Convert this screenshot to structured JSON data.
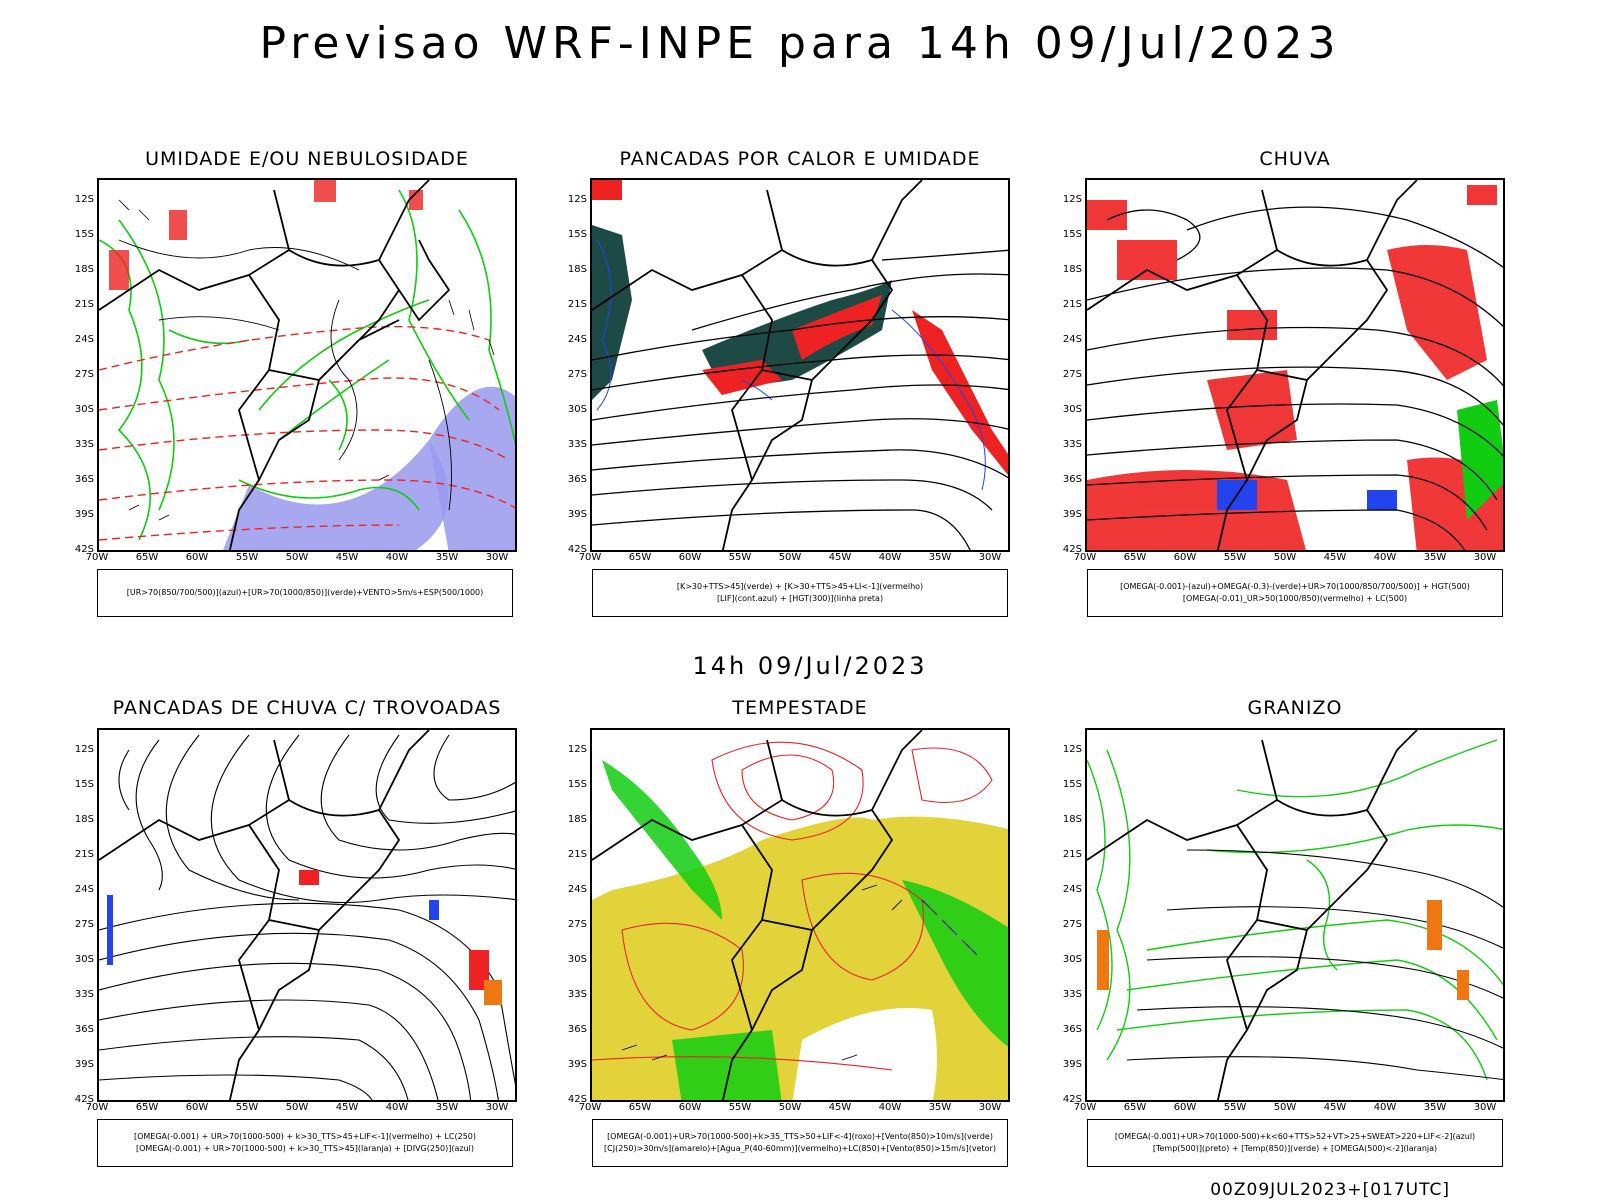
{
  "title": "Previsao WRF-INPE  para 14h 09/Jul/2023",
  "mid_label": "14h 09/Jul/2023",
  "run_id": "00Z09JUL2023+[017UTC]",
  "axes": {
    "lat_labels": [
      "12S",
      "15S",
      "18S",
      "21S",
      "24S",
      "27S",
      "30S",
      "33S",
      "36S",
      "39S",
      "42S"
    ],
    "lon_labels": [
      "70W",
      "65W",
      "60W",
      "55W",
      "50W",
      "45W",
      "40W",
      "35W",
      "30W"
    ]
  },
  "panels": [
    {
      "title": "UMIDADE E/OU NEBULOSIDADE",
      "legend_line1": "[UR>70(850/700/500)](azul)+[UR>70(1000/850)](verde)+VENTO>5m/s+ESP(500/1000)",
      "legend_line2": ""
    },
    {
      "title": "PANCADAS POR CALOR E UMIDADE",
      "legend_line1": "[K>30+TTS>45](verde) + [K>30+TTS>45+LI<-1](vermelho)",
      "legend_line2": "[LIF](cont.azul) + [HGT(300)](linha preta)"
    },
    {
      "title": "CHUVA",
      "legend_line1": "[OMEGA(-0.001)-(azul)+OMEGA(-0.3)-(verde)+UR>70(1000/850/700/500)] + HGT(500)",
      "legend_line2": "[OMEGA(-0.01)_UR>50(1000/850)(vermelho) + LC(500)"
    },
    {
      "title": "PANCADAS DE CHUVA C/ TROVOADAS",
      "legend_line1": "[OMEGA(-0.001) + UR>70(1000-500) + k>30_TTS>45+LIF<-1](vermelho) + LC(250)",
      "legend_line2": "[OMEGA(-0.001) + UR>70(1000-500) + k>30_TTS>45](laranja) + [DIVG(250)](azul)"
    },
    {
      "title": "TEMPESTADE",
      "legend_line1": "[OMEGA(-0.001)+UR>70(1000-500)+k>35_TTS>50+LIF<-4](roxo)+[Vento(850)>10m/s](verde)",
      "legend_line2": "[CJ(250)>30m/s](amarelo)+[Agua_P(40-60mm)](vermelho)+LC(850)+[Vento(850)>15m/s](vetor)"
    },
    {
      "title": "GRANIZO",
      "legend_line1": "[OMEGA(-0.001)+UR>70(1000-500)+k<60+TTS>52+VT>25+SWEAT>220+LIF<-2](azul)",
      "legend_line2": "[Temp(500)](preto) + [Temp(850)](verde) + [OMEGA(500)<-2](laranja)"
    }
  ],
  "colors": {
    "red": "#ee2222",
    "green": "#11cc11",
    "blue": "#2244ee",
    "lavender": "#9999ee",
    "darkteal": "#1e4a46",
    "yellow": "#e2d33a",
    "orange": "#ee7711"
  }
}
